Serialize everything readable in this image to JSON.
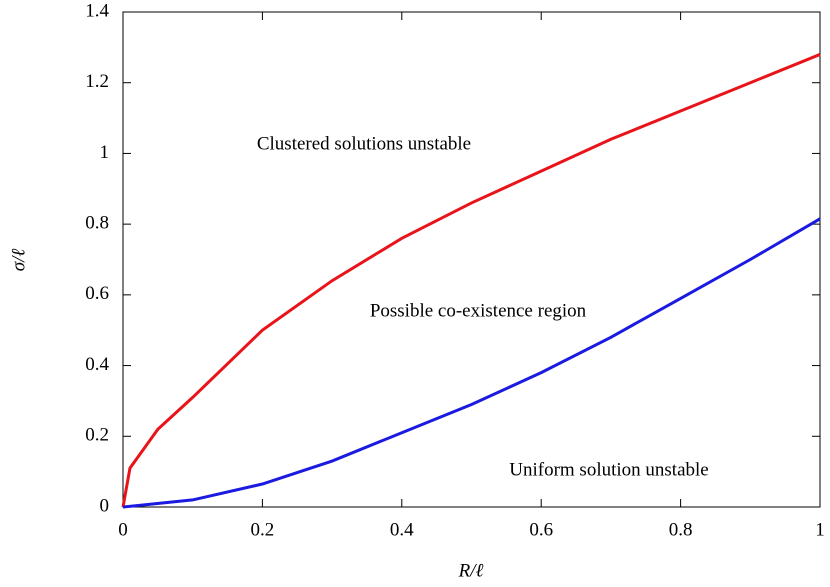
{
  "chart_data": {
    "type": "line",
    "x_label": "R/ℓ",
    "y_label": "σ/ℓ",
    "annotations": [
      "Clustered solutions unstable",
      "Possible co-existence region",
      "Uniform solution unstable"
    ],
    "series": [
      {
        "color": "#e8141a",
        "x": [
          0,
          0.01,
          0.05,
          0.1,
          0.2,
          0.3,
          0.4,
          0.5,
          0.6,
          0.7,
          0.8,
          0.9,
          1.0
        ],
        "values": [
          0,
          0.11,
          0.22,
          0.31,
          0.5,
          0.64,
          0.76,
          0.86,
          0.95,
          1.04,
          1.12,
          1.2,
          1.28
        ]
      },
      {
        "color": "#1a1ae0",
        "x": [
          0,
          0.1,
          0.2,
          0.3,
          0.4,
          0.5,
          0.6,
          0.7,
          0.8,
          0.9,
          1.0
        ],
        "values": [
          0,
          0.02,
          0.065,
          0.13,
          0.21,
          0.29,
          0.38,
          0.48,
          0.59,
          0.7,
          0.815
        ]
      }
    ],
    "xlim": [
      0,
      1
    ],
    "xticks": [
      0,
      0.2,
      0.4,
      0.6,
      0.8,
      1
    ],
    "ylim": [
      0,
      1.4
    ],
    "yticks": [
      0,
      0.2,
      0.4,
      0.6,
      0.8,
      1,
      1.2,
      1.4
    ]
  }
}
